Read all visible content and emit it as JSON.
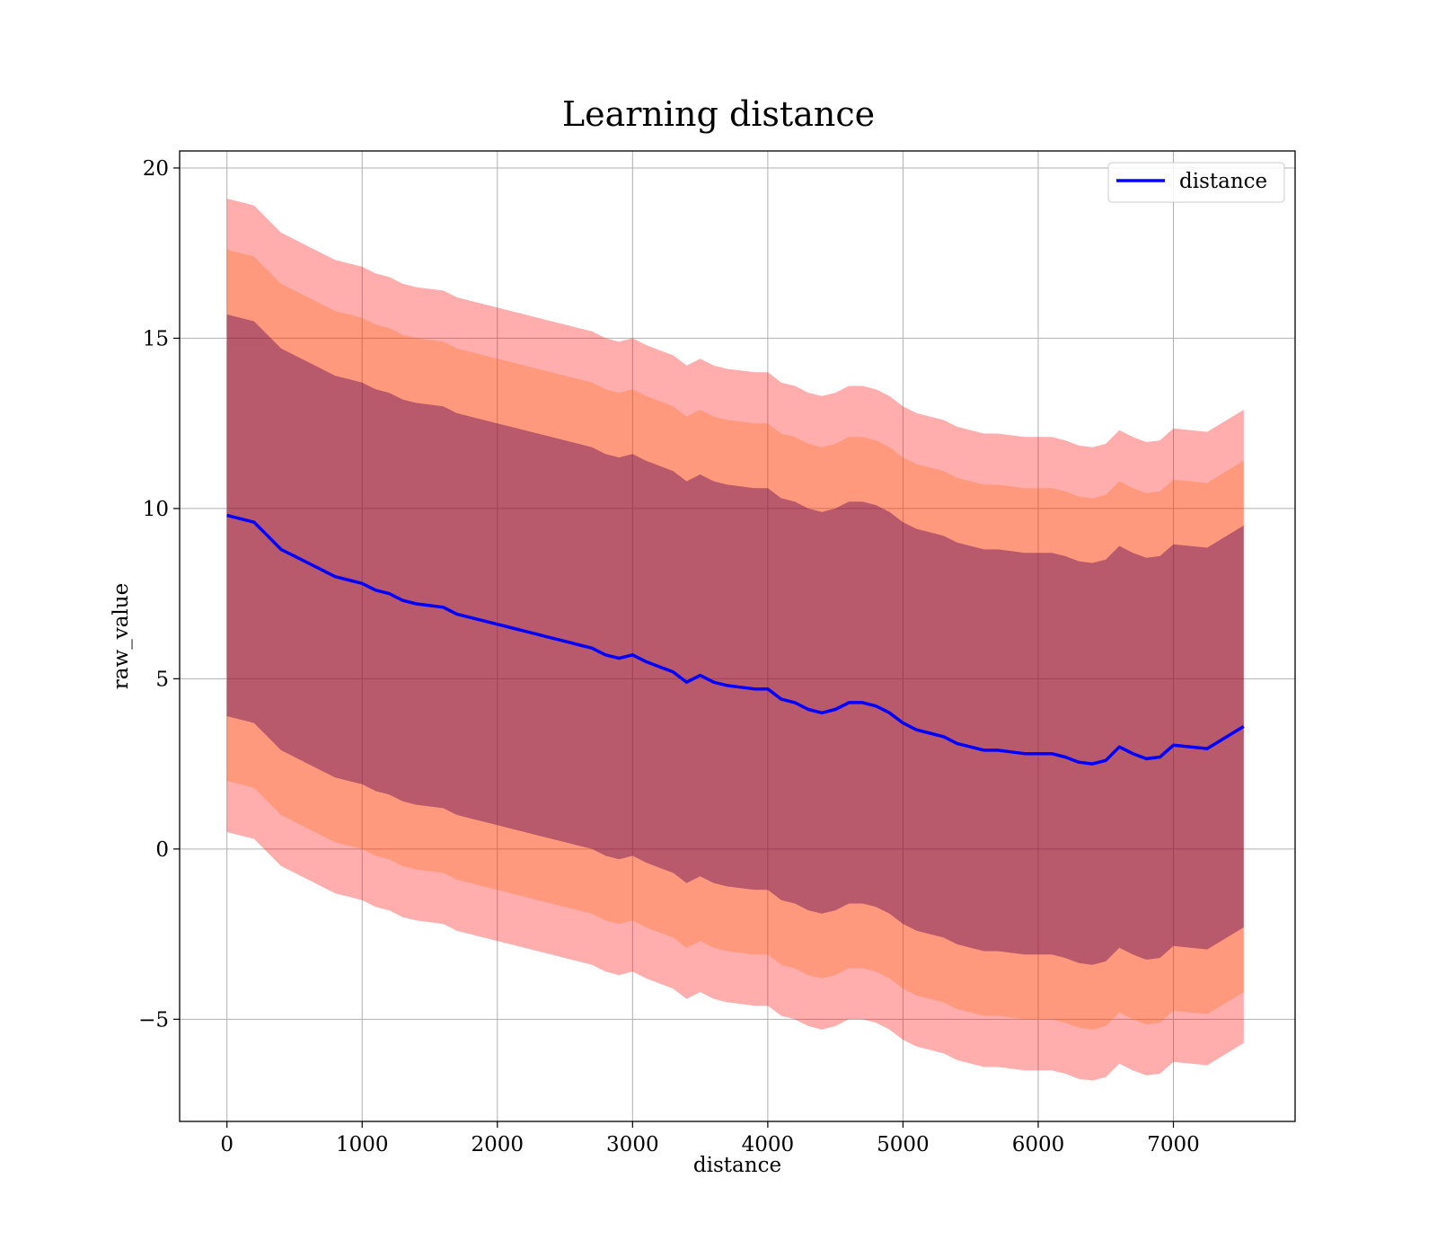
{
  "chart_data": {
    "type": "line",
    "title": "Learning distance",
    "xlabel": "distance",
    "ylabel": "raw_value",
    "xlim": [
      -350,
      7900
    ],
    "ylim": [
      -8,
      20.5
    ],
    "xticks": [
      0,
      1000,
      2000,
      3000,
      4000,
      5000,
      6000,
      7000
    ],
    "yticks": [
      -5,
      0,
      5,
      10,
      15,
      20
    ],
    "ytick_labels": [
      "−5",
      "0",
      "5",
      "10",
      "15",
      "20"
    ],
    "grid": true,
    "legend": {
      "placement": "top-right",
      "entries": [
        "distance"
      ]
    },
    "colors": {
      "line": "#0000ff",
      "band_3sd": "#ff0000",
      "band_2sd": "#ff6600",
      "band_1sd": "#550055"
    },
    "series": [
      {
        "name": "distance",
        "x": [
          0,
          100,
          200,
          300,
          400,
          500,
          600,
          700,
          800,
          900,
          1000,
          1100,
          1200,
          1300,
          1400,
          1500,
          1600,
          1700,
          1800,
          1900,
          2000,
          2100,
          2200,
          2300,
          2400,
          2500,
          2600,
          2700,
          2800,
          2900,
          3000,
          3100,
          3200,
          3300,
          3400,
          3500,
          3600,
          3700,
          3800,
          3900,
          4000,
          4100,
          4200,
          4300,
          4400,
          4500,
          4600,
          4700,
          4800,
          4900,
          5000,
          5100,
          5200,
          5300,
          5400,
          5500,
          5600,
          5700,
          5800,
          5900,
          6000,
          6100,
          6200,
          6300,
          6400,
          6500,
          6600,
          6700,
          6800,
          6900,
          7000,
          7250,
          7520
        ],
        "y": [
          9.8,
          9.7,
          9.6,
          9.2,
          8.8,
          8.6,
          8.4,
          8.2,
          8.0,
          7.9,
          7.8,
          7.6,
          7.5,
          7.3,
          7.2,
          7.15,
          7.1,
          6.9,
          6.8,
          6.7,
          6.6,
          6.5,
          6.4,
          6.3,
          6.2,
          6.1,
          6.0,
          5.9,
          5.7,
          5.6,
          5.7,
          5.5,
          5.35,
          5.2,
          4.9,
          5.1,
          4.9,
          4.8,
          4.75,
          4.7,
          4.7,
          4.4,
          4.3,
          4.1,
          4.0,
          4.1,
          4.3,
          4.3,
          4.2,
          4.0,
          3.7,
          3.5,
          3.4,
          3.3,
          3.1,
          3.0,
          2.9,
          2.9,
          2.85,
          2.8,
          2.8,
          2.8,
          2.7,
          2.55,
          2.5,
          2.6,
          3.0,
          2.8,
          2.65,
          2.7,
          3.05,
          2.95,
          3.6
        ]
      }
    ],
    "bands": [
      {
        "name": "±3σ",
        "lower_offset": -9.3,
        "upper_offset": 9.3
      },
      {
        "name": "±2σ",
        "lower_offset": -7.8,
        "upper_offset": 7.8
      },
      {
        "name": "±1σ",
        "lower_offset": -5.9,
        "upper_offset": 5.9
      }
    ]
  }
}
